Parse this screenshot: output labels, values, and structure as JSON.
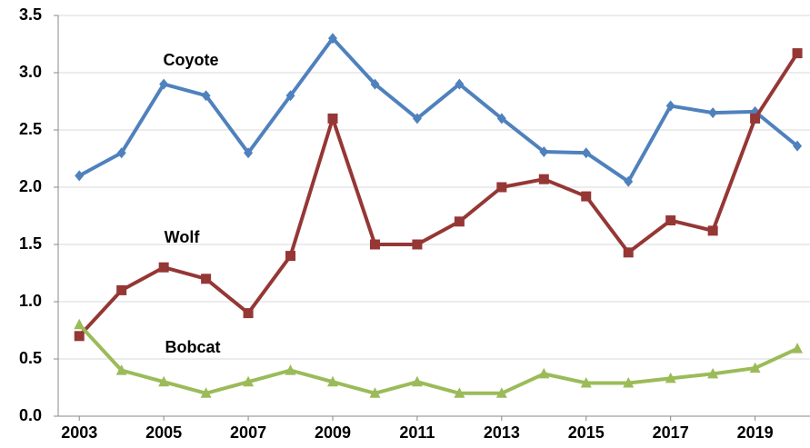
{
  "chart_data": {
    "type": "line",
    "x": [
      2003,
      2004,
      2005,
      2006,
      2007,
      2008,
      2009,
      2010,
      2011,
      2012,
      2013,
      2014,
      2015,
      2016,
      2017,
      2018,
      2019,
      2020
    ],
    "series": [
      {
        "name": "Coyote",
        "color": "#4f81bd",
        "marker": "diamond",
        "values": [
          2.1,
          2.3,
          2.9,
          2.8,
          2.3,
          2.8,
          3.3,
          2.9,
          2.6,
          2.9,
          2.6,
          2.31,
          2.3,
          2.05,
          2.71,
          2.65,
          2.66,
          2.36
        ]
      },
      {
        "name": "Wolf",
        "color": "#953735",
        "marker": "square",
        "values": [
          0.7,
          1.1,
          1.3,
          1.2,
          0.9,
          1.4,
          2.6,
          1.5,
          1.5,
          1.7,
          2.0,
          2.07,
          1.92,
          1.43,
          1.71,
          1.62,
          2.6,
          3.17
        ]
      },
      {
        "name": "Bobcat",
        "color": "#9bbb59",
        "marker": "triangle",
        "values": [
          0.8,
          0.4,
          0.3,
          0.2,
          0.3,
          0.4,
          0.3,
          0.2,
          0.3,
          0.2,
          0.2,
          0.37,
          0.29,
          0.29,
          0.33,
          0.37,
          0.42,
          0.59
        ]
      }
    ],
    "xlim": [
      2002.5,
      2020.3
    ],
    "xticks": [
      2003,
      2005,
      2007,
      2009,
      2011,
      2013,
      2015,
      2017,
      2019
    ],
    "ylim": [
      0,
      3.5
    ],
    "yticks": [
      {
        "value": 0,
        "label": "0.0"
      },
      0.5,
      {
        "value": 1,
        "label": "1.0"
      },
      1.5,
      {
        "value": 2,
        "label": "2.0"
      },
      2.5,
      {
        "value": 3,
        "label": "3.0"
      },
      3.5
    ],
    "grid": true
  }
}
